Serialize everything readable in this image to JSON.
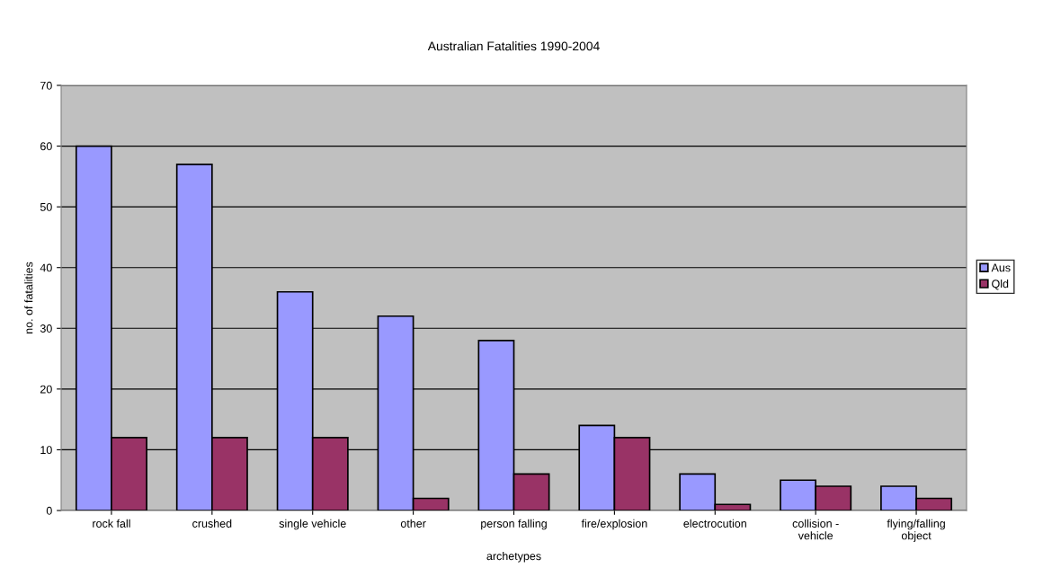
{
  "chart_data": {
    "type": "bar",
    "title": "Australian Fatalities 1990-2004",
    "xlabel": "archetypes",
    "ylabel": "no. of fatalities",
    "categories": [
      "rock fall",
      "crushed",
      "single vehicle",
      "other",
      "person falling",
      "fire/explosion",
      "electrocution",
      "collision -\nvehicle",
      "flying/falling\nobject"
    ],
    "series": [
      {
        "name": "Aus",
        "color": "#9999ff",
        "values": [
          60,
          57,
          36,
          32,
          28,
          14,
          6,
          5,
          4
        ]
      },
      {
        "name": "Qld",
        "color": "#993366",
        "values": [
          12,
          12,
          12,
          2,
          6,
          12,
          1,
          4,
          2
        ]
      }
    ],
    "ylim": [
      0,
      70
    ],
    "yticks": [
      0,
      10,
      20,
      30,
      40,
      50,
      60,
      70
    ],
    "grid": "y",
    "legend": "right"
  }
}
